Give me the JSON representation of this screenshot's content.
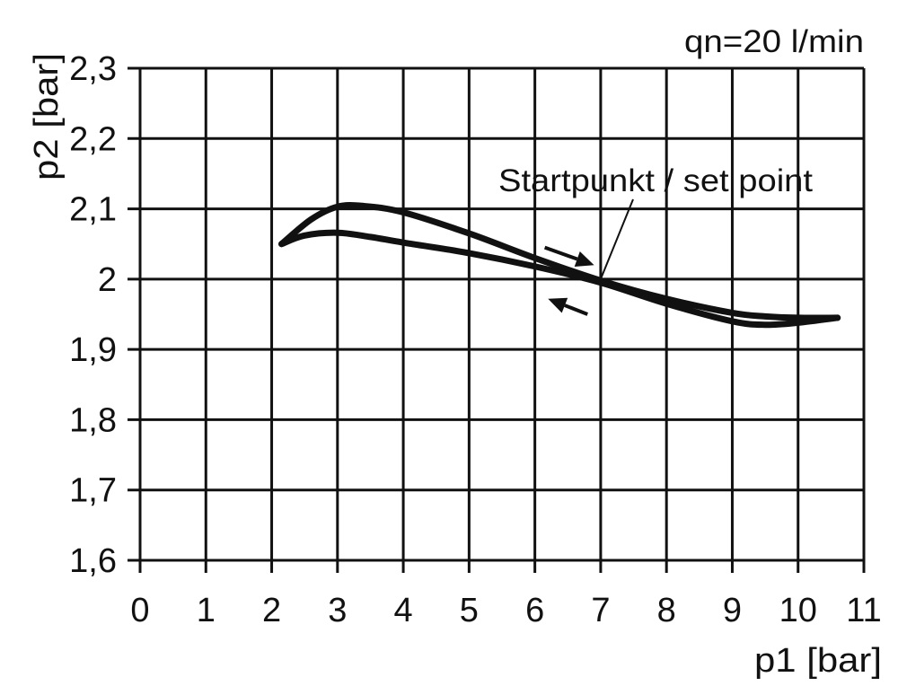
{
  "chart_data": {
    "type": "line",
    "title": "qn=20 l/min",
    "xlabel": "p1 [bar]",
    "ylabel": "p2 [bar]",
    "xlim": [
      0,
      11
    ],
    "ylim": [
      1.6,
      2.3
    ],
    "grid": true,
    "x_ticks": [
      "0",
      "1",
      "2",
      "3",
      "4",
      "5",
      "6",
      "7",
      "8",
      "9",
      "10",
      "11"
    ],
    "y_ticks": [
      "1,6",
      "1,7",
      "1,8",
      "1,9",
      "2",
      "2,1",
      "2,2",
      "2,3"
    ],
    "annotation": {
      "text": "Startpunkt / set point",
      "x": 7,
      "y": 2.0
    },
    "series": [
      {
        "values": [
          [
            2.15,
            2.05
          ],
          [
            2.6,
            2.085
          ],
          [
            3,
            2.103
          ],
          [
            3.4,
            2.104
          ],
          [
            4,
            2.095
          ],
          [
            5,
            2.065
          ],
          [
            6,
            2.03
          ],
          [
            7,
            1.998
          ],
          [
            8,
            1.972
          ],
          [
            9,
            1.952
          ],
          [
            9.5,
            1.947
          ],
          [
            10,
            1.945
          ],
          [
            10.6,
            1.945
          ]
        ]
      },
      {
        "values": [
          [
            2.15,
            2.05
          ],
          [
            2.5,
            2.062
          ],
          [
            3,
            2.066
          ],
          [
            3.5,
            2.06
          ],
          [
            4,
            2.052
          ],
          [
            5,
            2.037
          ],
          [
            6,
            2.018
          ],
          [
            7,
            1.995
          ],
          [
            8,
            1.965
          ],
          [
            9,
            1.94
          ],
          [
            9.5,
            1.935
          ],
          [
            10,
            1.938
          ],
          [
            10.6,
            1.945
          ]
        ]
      }
    ],
    "arrows": [
      {
        "direction": "increasing p1",
        "from": [
          6.15,
          2.045
        ],
        "to": [
          6.9,
          2.02
        ]
      },
      {
        "direction": "decreasing p1",
        "from": [
          6.8,
          1.95
        ],
        "to": [
          6.2,
          1.972
        ]
      }
    ],
    "colors": {
      "line": "#111111",
      "grid": "#111111"
    }
  }
}
